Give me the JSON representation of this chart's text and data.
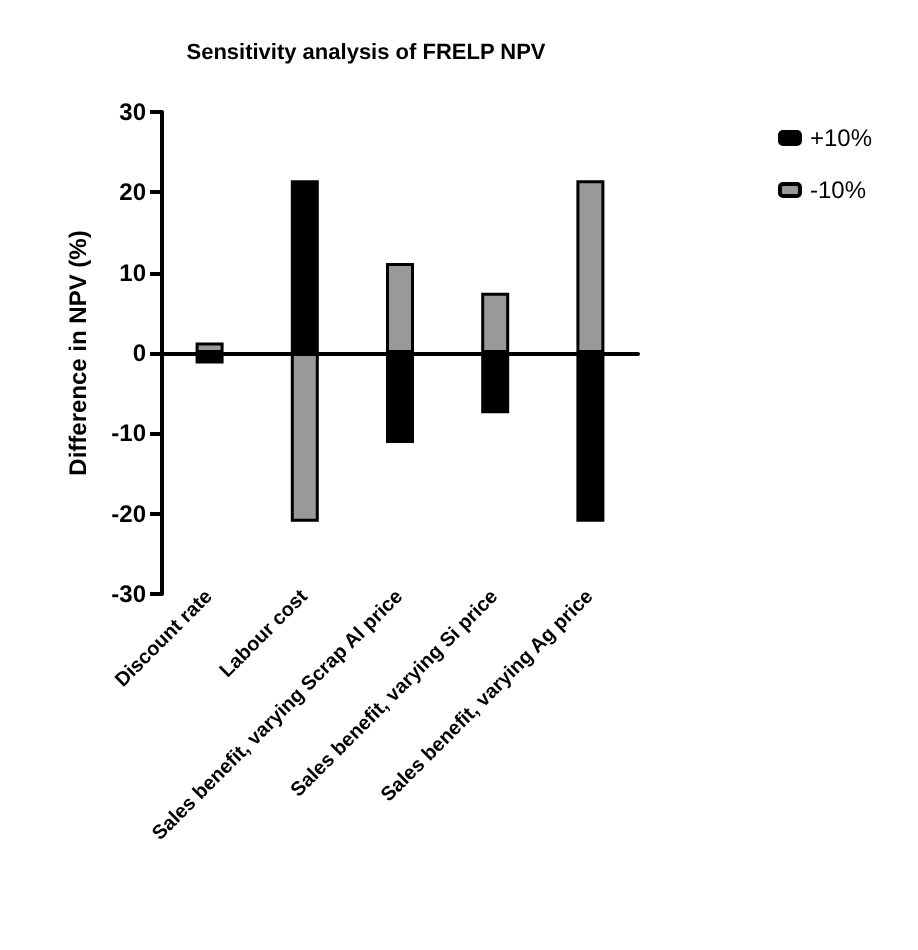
{
  "chart_data": {
    "type": "bar",
    "title": "Sensitivity analysis of FRELP NPV",
    "ylabel": "Difference in NPV (%)",
    "categories": [
      "Discount rate",
      "Labour cost",
      "Sales benefit, varying Scrap Al price",
      "Sales benefit, varying Si price",
      "Sales benefit, varying Ag price"
    ],
    "series": [
      {
        "name": "+10%",
        "color": "#000000",
        "values": [
          -1.3,
          21.5,
          -11.2,
          -7.5,
          -21
        ]
      },
      {
        "name": "-10%",
        "color": "#999999",
        "values": [
          1.3,
          -21,
          11.2,
          7.5,
          21.5
        ]
      }
    ],
    "ylim": [
      -30,
      30
    ],
    "yticks": [
      -30,
      -20,
      -10,
      0,
      10,
      20,
      30
    ],
    "stacked": true,
    "legend": "top right"
  }
}
